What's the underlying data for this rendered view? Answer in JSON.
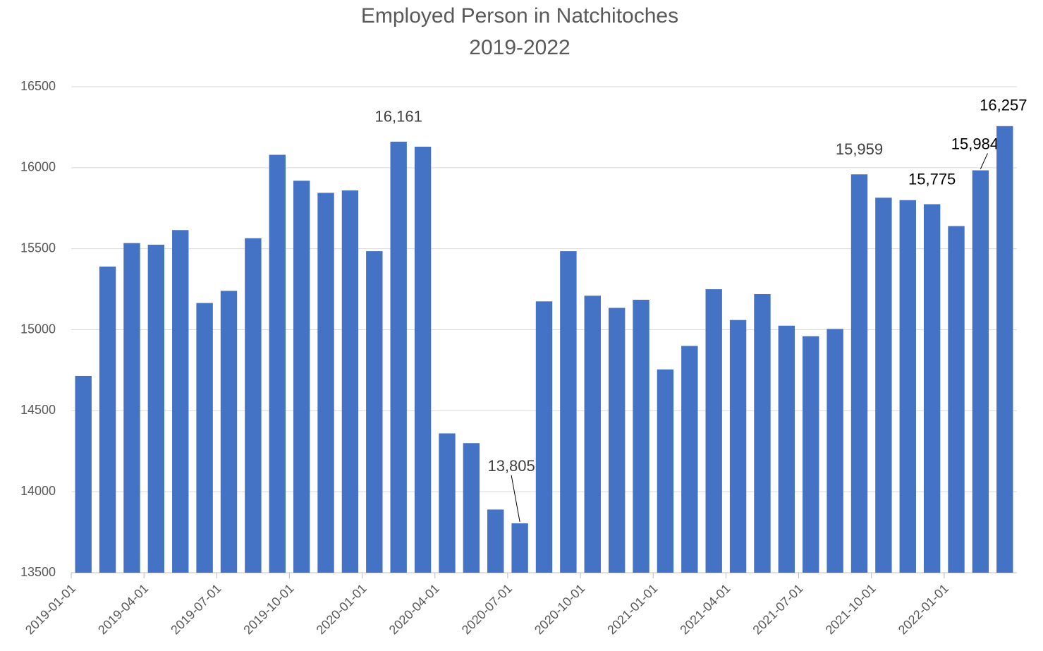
{
  "chart_data": {
    "type": "bar",
    "title": "Employed Person in Natchitoches",
    "subtitle": "2019-2022",
    "categories": [
      "2019-01-01",
      null,
      null,
      "2019-04-01",
      null,
      null,
      "2019-07-01",
      null,
      null,
      "2019-10-01",
      null,
      null,
      "2020-01-01",
      null,
      null,
      "2020-04-01",
      null,
      null,
      "2020-07-01",
      null,
      null,
      "2020-10-01",
      null,
      null,
      "2021-01-01",
      null,
      null,
      "2021-04-01",
      null,
      null,
      "2021-07-01",
      null,
      null,
      "2021-10-01",
      null,
      null,
      "2022-01-01",
      null,
      null
    ],
    "values": [
      14715,
      15390,
      15535,
      15525,
      15615,
      15165,
      15240,
      15565,
      16080,
      15920,
      15845,
      15860,
      15485,
      16161,
      16130,
      14360,
      14300,
      13890,
      13805,
      15175,
      15485,
      15210,
      15135,
      15185,
      14755,
      14900,
      15250,
      15060,
      15220,
      15025,
      14960,
      15005,
      15959,
      15815,
      15800,
      15775,
      15640,
      15984,
      16257
    ],
    "value_labels": [
      null,
      null,
      null,
      null,
      null,
      null,
      null,
      null,
      null,
      null,
      null,
      null,
      null,
      "16,161",
      null,
      null,
      null,
      null,
      "13,805",
      null,
      null,
      null,
      null,
      null,
      null,
      null,
      null,
      null,
      null,
      null,
      null,
      null,
      "15,959",
      null,
      null,
      "15,775",
      null,
      "15,984",
      "16,257"
    ],
    "color": "#4472c4",
    "ylim": [
      13500,
      16500
    ],
    "yticks": [
      13500,
      14000,
      14500,
      15000,
      15500,
      16000,
      16500
    ],
    "grid": true
  }
}
